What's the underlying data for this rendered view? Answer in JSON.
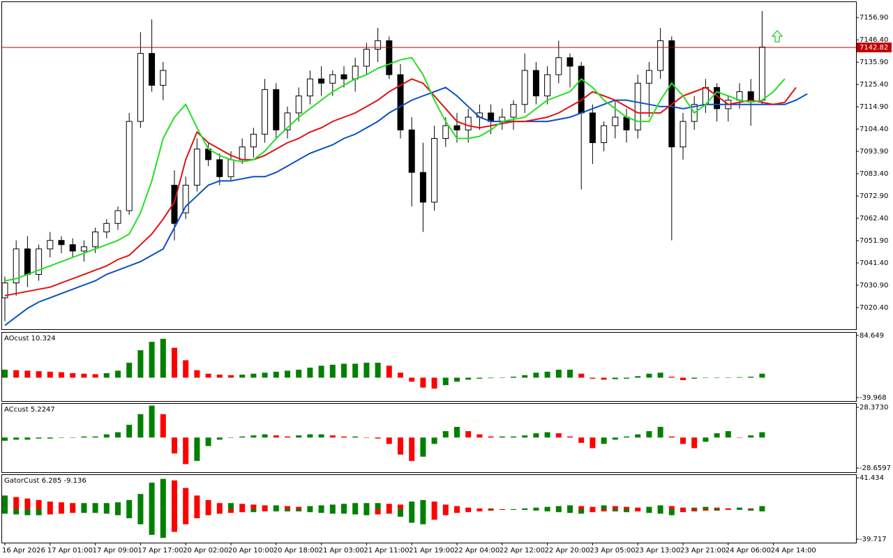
{
  "chart_data": [
    {
      "type": "candlestick",
      "categories": [
        "16 Apr 2026",
        null,
        null,
        null,
        "17 Apr 01:00",
        null,
        null,
        null,
        "17 Apr 09:00",
        null,
        null,
        null,
        "17 Apr 17:00",
        null,
        null,
        null,
        "20 Apr 02:00",
        null,
        null,
        null,
        "20 Apr 10:00",
        null,
        null,
        null,
        "20 Apr 18:00",
        null,
        null,
        null,
        "21 Apr 03:00",
        null,
        null,
        null,
        "21 Apr 11:00",
        null,
        null,
        null,
        "21 Apr 19:00",
        null,
        null,
        null,
        "22 Apr 04:00",
        null,
        null,
        null,
        "22 Apr 12:00",
        null,
        null,
        null,
        "22 Apr 20:00",
        null,
        null,
        null,
        "23 Apr 05:00",
        null,
        null,
        null,
        "23 Apr 13:00",
        null,
        null,
        null,
        "23 Apr 21:00",
        null,
        null,
        null,
        "24 Apr 06:00",
        null,
        null,
        null,
        "24 Apr 14:00",
        null,
        null,
        null
      ],
      "open": [
        7025,
        7032,
        7048,
        7036,
        7048,
        7052,
        7050,
        7047,
        7049,
        7056,
        7060,
        7066,
        7108,
        7140,
        7125,
        7078,
        7065,
        7078,
        7095,
        7090,
        7082,
        7090,
        7096,
        7102,
        7123,
        7104,
        7112,
        7120,
        7128,
        7126,
        7130,
        7128,
        7134,
        7142,
        7146,
        7130,
        7104,
        7084,
        7070,
        7100,
        7106,
        7104,
        7110,
        7112,
        7108,
        7110,
        7116,
        7132,
        7120,
        7130,
        7138,
        7134,
        7112,
        7098,
        7106,
        7110,
        7104,
        7126,
        7132,
        7146,
        7096,
        7108,
        7116,
        7124,
        7114,
        7118,
        7122,
        7118,
        null,
        null,
        null,
        null
      ],
      "high": [
        7035,
        7052,
        7054,
        7050,
        7056,
        7054,
        7053,
        7052,
        7058,
        7062,
        7068,
        7112,
        7150,
        7156,
        7136,
        7085,
        7082,
        7100,
        7098,
        7093,
        7094,
        7100,
        7105,
        7128,
        7126,
        7115,
        7124,
        7132,
        7134,
        7132,
        7134,
        7138,
        7145,
        7152,
        7148,
        7135,
        7110,
        7098,
        7106,
        7110,
        7112,
        7114,
        7116,
        7116,
        7114,
        7118,
        7140,
        7136,
        7134,
        7146,
        7140,
        7136,
        7116,
        7108,
        7118,
        7114,
        7130,
        7136,
        7152,
        7148,
        7112,
        7120,
        7128,
        7126,
        7120,
        7126,
        7128,
        7160,
        null,
        null,
        null,
        null
      ],
      "low": [
        7014,
        7026,
        7030,
        7033,
        7044,
        7046,
        7044,
        7042,
        7046,
        7053,
        7057,
        7064,
        7105,
        7122,
        7118,
        7052,
        7062,
        7075,
        7087,
        7078,
        7080,
        7088,
        7091,
        7098,
        7100,
        7100,
        7108,
        7116,
        7120,
        7120,
        7124,
        7122,
        7130,
        7136,
        7128,
        7100,
        7068,
        7056,
        7066,
        7096,
        7098,
        7098,
        7104,
        7102,
        7104,
        7104,
        7112,
        7116,
        7116,
        7126,
        7124,
        7076,
        7088,
        7094,
        7100,
        7098,
        7100,
        7110,
        7128,
        7052,
        7090,
        7104,
        7112,
        7108,
        7108,
        7114,
        7106,
        7116,
        null,
        null,
        null,
        null
      ],
      "close": [
        7032,
        7048,
        7036,
        7048,
        7052,
        7050,
        7047,
        7049,
        7056,
        7060,
        7066,
        7108,
        7140,
        7125,
        7132,
        7060,
        7078,
        7095,
        7090,
        7082,
        7090,
        7096,
        7102,
        7123,
        7104,
        7112,
        7120,
        7128,
        7126,
        7130,
        7128,
        7134,
        7142,
        7146,
        7130,
        7104,
        7084,
        7070,
        7100,
        7106,
        7104,
        7110,
        7112,
        7108,
        7110,
        7116,
        7132,
        7120,
        7130,
        7138,
        7134,
        7112,
        7098,
        7106,
        7110,
        7104,
        7126,
        7132,
        7146,
        7096,
        7108,
        7116,
        7124,
        7114,
        7118,
        7122,
        7118,
        7143,
        null,
        null,
        null,
        null
      ],
      "up_color": "#ffffff",
      "down_color": "#000000",
      "lines": [
        {
          "color": "#0a4fc4",
          "values": [
            7012,
            7016,
            7020,
            7023,
            7025,
            7027,
            7029,
            7031,
            7033,
            7036,
            7038,
            7040,
            7042,
            7045,
            7048,
            7058,
            7068,
            7073,
            7078,
            7080,
            7080,
            7081,
            7082,
            7082,
            7084,
            7087,
            7090,
            7093,
            7095,
            7097,
            7100,
            7102,
            7105,
            7108,
            7112,
            7115,
            7118,
            7120,
            7122,
            7124,
            7120,
            7115,
            7110,
            7108,
            7108,
            7108,
            7108,
            7108,
            7108,
            7109,
            7110,
            7112,
            7114,
            7116,
            7118,
            7118,
            7117,
            7116,
            7115,
            7115,
            7114,
            7115,
            7116,
            7116,
            7116,
            7116,
            7116,
            7116,
            7116,
            7116,
            7118,
            7121
          ]
        },
        {
          "color": "#e01010",
          "values": [
            7026,
            7027,
            7028,
            7029,
            7030,
            7032,
            7034,
            7036,
            7038,
            7040,
            7043,
            7045,
            7050,
            7055,
            7062,
            7070,
            7090,
            7103,
            7098,
            7095,
            7092,
            7090,
            7090,
            7092,
            7095,
            7098,
            7100,
            7103,
            7105,
            7108,
            7110,
            7112,
            7115,
            7118,
            7122,
            7125,
            7128,
            7126,
            7120,
            7114,
            7108,
            7106,
            7105,
            7106,
            7107,
            7108,
            7108,
            7109,
            7110,
            7112,
            7115,
            7118,
            7122,
            7120,
            7118,
            7115,
            7112,
            7112,
            7112,
            7116,
            7120,
            7122,
            7124,
            7120,
            7116,
            7117,
            7118,
            7117,
            7116,
            7117,
            7124,
            null
          ]
        },
        {
          "color": "#22e022",
          "values": [
            7033,
            7034,
            7036,
            7038,
            7040,
            7042,
            7044,
            7046,
            7048,
            7050,
            7052,
            7055,
            7065,
            7080,
            7100,
            7110,
            7116,
            7105,
            7095,
            7092,
            7090,
            7089,
            7090,
            7094,
            7100,
            7105,
            7110,
            7114,
            7118,
            7122,
            7125,
            7128,
            7130,
            7133,
            7135,
            7137,
            7138,
            7130,
            7118,
            7108,
            7100,
            7100,
            7101,
            7104,
            7108,
            7109,
            7110,
            7114,
            7118,
            7120,
            7122,
            7128,
            7124,
            7118,
            7114,
            7110,
            7108,
            7108,
            7118,
            7126,
            7120,
            7112,
            7116,
            7122,
            7120,
            7118,
            7117,
            7118,
            7122,
            7128,
            null,
            null
          ]
        }
      ],
      "price_line": {
        "value": 7142.82,
        "color": "#c00000"
      },
      "ylim": [
        7010.2,
        7164.5
      ],
      "yticks": [
        {
          "value": 7156.9,
          "label": "7156.90"
        },
        {
          "value": 7146.4,
          "label": "7146.40"
        },
        {
          "value": 7135.9,
          "label": "7135.90"
        },
        {
          "value": 7125.4,
          "label": "7125.40"
        },
        {
          "value": 7114.9,
          "label": "7114.90"
        },
        {
          "value": 7104.4,
          "label": "7104.40"
        },
        {
          "value": 7093.9,
          "label": "7093.90"
        },
        {
          "value": 7083.4,
          "label": "7083.40"
        },
        {
          "value": 7072.9,
          "label": "7072.90"
        },
        {
          "value": 7062.4,
          "label": "7062.40"
        },
        {
          "value": 7051.9,
          "label": "7051.90"
        },
        {
          "value": 7041.4,
          "label": "7041.40"
        },
        {
          "value": 7030.9,
          "label": "7030.90"
        },
        {
          "value": 7020.4,
          "label": "7020.40"
        }
      ]
    },
    {
      "type": "bar",
      "title": "AOcust 10.324",
      "up_color": "#008000",
      "down_color": "#ff0000",
      "values": [
        16,
        15,
        14,
        13,
        12,
        11,
        9,
        8,
        7,
        9,
        14,
        30,
        55,
        72,
        78,
        60,
        35,
        15,
        8,
        6,
        5,
        6,
        8,
        10,
        12,
        14,
        16,
        20,
        24,
        26,
        28,
        28,
        30,
        30,
        24,
        10,
        -8,
        -20,
        -22,
        -15,
        -8,
        -4,
        -2,
        -1,
        0,
        2,
        5,
        10,
        12,
        16,
        16,
        8,
        -2,
        -4,
        -3,
        -2,
        3,
        8,
        10,
        2,
        -5,
        -2,
        0,
        0,
        0,
        1,
        2,
        8
      ],
      "ylim": [
        -39.968,
        84.649
      ],
      "yticks": [
        84.649,
        -39.968
      ]
    },
    {
      "type": "bar",
      "title": "ACcust 5.2247",
      "up_color": "#008000",
      "down_color": "#ff0000",
      "values": [
        -3,
        -2,
        -2,
        -1,
        -1,
        0,
        0,
        1,
        1,
        3,
        5,
        12,
        22,
        30,
        22,
        -15,
        -25,
        -22,
        -8,
        -2,
        0,
        1,
        2,
        3,
        2,
        1,
        2,
        3,
        3,
        2,
        1,
        1,
        0,
        -1,
        -6,
        -16,
        -22,
        -18,
        -6,
        6,
        10,
        6,
        3,
        1,
        1,
        1,
        2,
        4,
        5,
        4,
        1,
        -5,
        -10,
        -6,
        -2,
        1,
        3,
        6,
        10,
        1,
        -6,
        -10,
        -4,
        4,
        6,
        0,
        2,
        5
      ],
      "ylim": [
        -28.6597,
        28.373
      ],
      "yticks": [
        {
          "value": 28.373,
          "label": "28.3730"
        },
        -28.6597
      ]
    },
    {
      "type": "bar",
      "title": "GatorCust 6.285 -9.136",
      "up_color": "#008000",
      "down_color": "#ff0000",
      "series": [
        {
          "values": [
            18,
            16,
            14,
            12,
            10,
            9,
            8,
            8,
            8,
            8,
            9,
            12,
            20,
            35,
            40,
            38,
            28,
            18,
            12,
            8,
            8,
            7,
            6,
            5,
            5,
            4,
            3,
            4,
            5,
            6,
            7,
            8,
            8,
            8,
            7,
            6,
            10,
            12,
            10,
            6,
            4,
            2,
            1,
            1,
            0,
            0,
            1,
            2,
            3,
            4,
            5,
            4,
            3,
            5,
            4,
            3,
            2,
            3,
            5,
            4,
            2,
            2,
            3,
            2,
            1,
            2,
            1,
            4
          ]
        },
        {
          "values": [
            -6,
            -7,
            -8,
            -8,
            -7,
            -6,
            -5,
            -5,
            -5,
            -6,
            -8,
            -12,
            -20,
            -34,
            -38,
            -30,
            -20,
            -12,
            -8,
            -6,
            -5,
            -4,
            -4,
            -3,
            -3,
            -3,
            -3,
            -4,
            -5,
            -6,
            -6,
            -7,
            -8,
            -7,
            -6,
            -10,
            -18,
            -20,
            -14,
            -8,
            -5,
            -4,
            -3,
            -2,
            -1,
            -1,
            -1,
            -2,
            -3,
            -4,
            -5,
            -6,
            -4,
            -3,
            -3,
            -4,
            -3,
            -5,
            -6,
            -8,
            -4,
            -3,
            -2,
            -2,
            -1,
            -1,
            -2,
            -3
          ]
        }
      ],
      "ylim": [
        -39.717,
        41.434
      ],
      "yticks": [
        41.434,
        -39.717
      ]
    }
  ]
}
